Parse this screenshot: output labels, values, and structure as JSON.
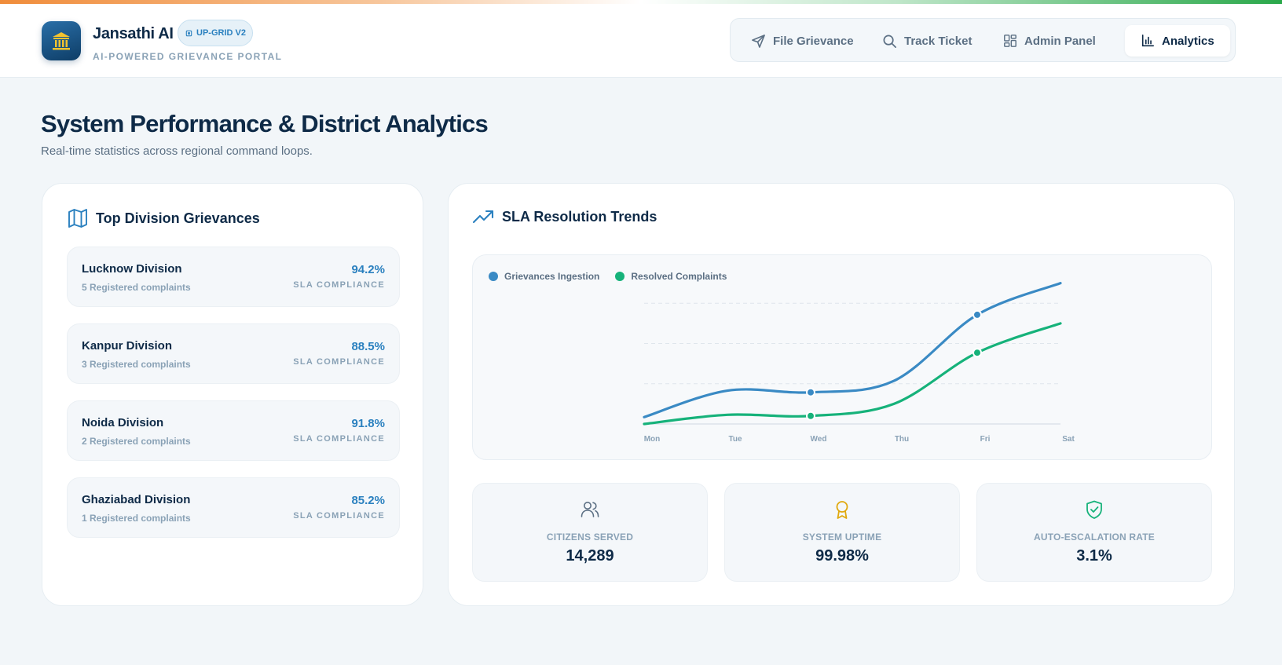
{
  "brand": {
    "name": "Jansathi AI",
    "badge": "UP-GRID V2",
    "tagline": "AI-POWERED GRIEVANCE PORTAL"
  },
  "nav": {
    "items": [
      {
        "label": "File Grievance",
        "icon": "send-icon"
      },
      {
        "label": "Track Ticket",
        "icon": "search-icon"
      },
      {
        "label": "Admin Panel",
        "icon": "dashboard-icon"
      },
      {
        "label": "Analytics",
        "icon": "bar-chart-icon",
        "active": true
      }
    ]
  },
  "page": {
    "title": "System Performance & District Analytics",
    "subtitle": "Real-time statistics across regional command loops."
  },
  "divisions": {
    "title": "Top Division Grievances",
    "icon": "map-icon",
    "items": [
      {
        "name": "Lucknow Division",
        "count": "5 Registered complaints",
        "pct": "94.2%",
        "label": "SLA COMPLIANCE"
      },
      {
        "name": "Kanpur Division",
        "count": "3 Registered complaints",
        "pct": "88.5%",
        "label": "SLA COMPLIANCE"
      },
      {
        "name": "Noida Division",
        "count": "2 Registered complaints",
        "pct": "91.8%",
        "label": "SLA COMPLIANCE"
      },
      {
        "name": "Ghaziabad Division",
        "count": "1 Registered complaints",
        "pct": "85.2%",
        "label": "SLA COMPLIANCE"
      }
    ]
  },
  "trends": {
    "title": "SLA Resolution Trends",
    "icon": "trending-up-icon"
  },
  "chart_data": {
    "type": "line",
    "categories": [
      "Mon",
      "Tue",
      "Wed",
      "Thu",
      "Fri",
      "Sat"
    ],
    "series": [
      {
        "name": "Grievances Ingestion",
        "color": "#3a8ac4",
        "values": [
          12,
          58,
          55,
          75,
          190,
          245
        ]
      },
      {
        "name": "Resolved Complaints",
        "color": "#16b27a",
        "values": [
          0,
          16,
          14,
          35,
          124,
          175
        ]
      }
    ],
    "grid": true,
    "legend": "top-left"
  },
  "stats": [
    {
      "label": "CITIZENS SERVED",
      "value": "14,289",
      "icon": "users-icon",
      "color": "#5b6f83"
    },
    {
      "label": "SYSTEM UPTIME",
      "value": "99.98%",
      "icon": "award-icon",
      "color": "#e0a90e"
    },
    {
      "label": "AUTO-ESCALATION RATE",
      "value": "3.1%",
      "icon": "shield-check-icon",
      "color": "#16b27a"
    }
  ]
}
